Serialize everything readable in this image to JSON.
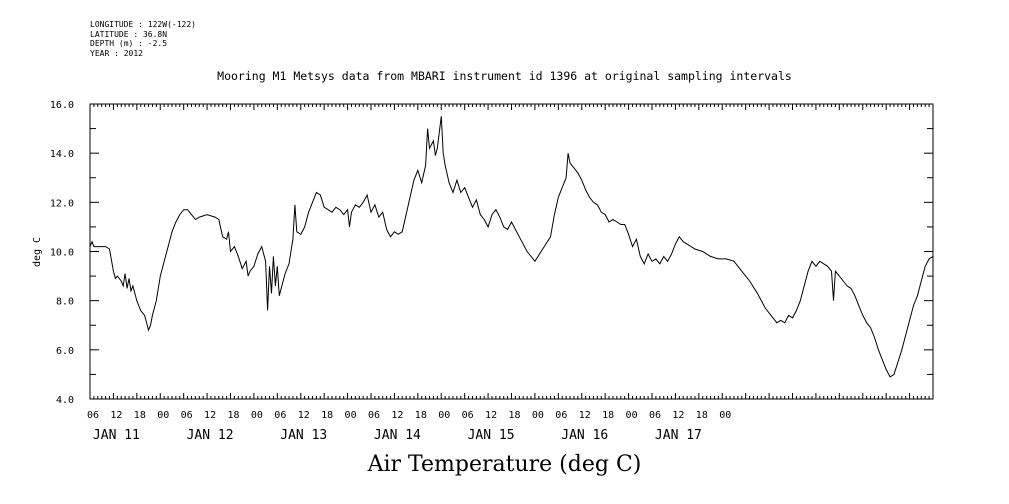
{
  "header": {
    "longitude": "LONGITUDE : 122W(-122)",
    "latitude": "LATITUDE : 36.8N",
    "depth": "DEPTH (m) : -2.5",
    "year": "YEAR : 2012"
  },
  "chart_data": {
    "type": "line",
    "title": "Air Temperature (deg C)",
    "subtitle": "Mooring M1 Metsys data from MBARI instrument id 1396 at original sampling intervals",
    "ylabel": "deg C",
    "ylim": [
      4.0,
      16.0
    ],
    "y_tick_labels": [
      "4.0",
      "6.0",
      "8.0",
      "10.0",
      "12.0",
      "14.0",
      "16.0"
    ],
    "x_range_hours": "2012-01-11 06:00 to 2012-01-18 00:00",
    "x_hour_labels": [
      "06",
      "12",
      "18",
      "00",
      "06",
      "12",
      "18",
      "00",
      "06",
      "12",
      "18",
      "00",
      "06",
      "12",
      "18",
      "00",
      "06",
      "12",
      "18",
      "00",
      "06",
      "12",
      "18",
      "00",
      "06",
      "12",
      "18",
      "00"
    ],
    "x_day_labels": [
      "JAN 11",
      "JAN 12",
      "JAN 13",
      "JAN 14",
      "JAN 15",
      "JAN 16",
      "JAN 17"
    ],
    "grid": false,
    "series": [
      {
        "values": [
          [
            0,
            10.2
          ],
          [
            0.5,
            10.4
          ],
          [
            1,
            10.2
          ],
          [
            3,
            10.2
          ],
          [
            4,
            10.2
          ],
          [
            5,
            10.1
          ],
          [
            6,
            9.2
          ],
          [
            6.5,
            8.9
          ],
          [
            7,
            9.0
          ],
          [
            8,
            8.8
          ],
          [
            8.5,
            8.6
          ],
          [
            9,
            9.1
          ],
          [
            9.5,
            8.5
          ],
          [
            10,
            8.9
          ],
          [
            10.5,
            8.4
          ],
          [
            11,
            8.6
          ],
          [
            12,
            8.0
          ],
          [
            13,
            7.6
          ],
          [
            14,
            7.4
          ],
          [
            14.5,
            7.1
          ],
          [
            15,
            6.8
          ],
          [
            15.5,
            7.0
          ],
          [
            16,
            7.4
          ],
          [
            17,
            8.0
          ],
          [
            18,
            9.0
          ],
          [
            19,
            9.6
          ],
          [
            20,
            10.2
          ],
          [
            21,
            10.8
          ],
          [
            22,
            11.2
          ],
          [
            23,
            11.5
          ],
          [
            24,
            11.7
          ],
          [
            25,
            11.7
          ],
          [
            26,
            11.5
          ],
          [
            27,
            11.3
          ],
          [
            28,
            11.4
          ],
          [
            30,
            11.5
          ],
          [
            32,
            11.4
          ],
          [
            33,
            11.3
          ],
          [
            34,
            10.6
          ],
          [
            35,
            10.5
          ],
          [
            35.5,
            10.8
          ],
          [
            36,
            10.0
          ],
          [
            37,
            10.2
          ],
          [
            38,
            9.8
          ],
          [
            39,
            9.3
          ],
          [
            40,
            9.6
          ],
          [
            40.5,
            9.0
          ],
          [
            41,
            9.2
          ],
          [
            42,
            9.4
          ],
          [
            43,
            9.9
          ],
          [
            44,
            10.2
          ],
          [
            45,
            9.6
          ],
          [
            45.5,
            7.6
          ],
          [
            46,
            9.4
          ],
          [
            46.5,
            8.3
          ],
          [
            47,
            9.8
          ],
          [
            47.5,
            8.6
          ],
          [
            48,
            9.4
          ],
          [
            48.5,
            8.2
          ],
          [
            49,
            8.5
          ],
          [
            50,
            9.1
          ],
          [
            51,
            9.5
          ],
          [
            52,
            10.5
          ],
          [
            52.5,
            11.9
          ],
          [
            53,
            10.8
          ],
          [
            54,
            10.7
          ],
          [
            55,
            11.0
          ],
          [
            56,
            11.6
          ],
          [
            57,
            12.0
          ],
          [
            58,
            12.4
          ],
          [
            59,
            12.3
          ],
          [
            60,
            11.8
          ],
          [
            61,
            11.7
          ],
          [
            62,
            11.6
          ],
          [
            63,
            11.8
          ],
          [
            64,
            11.7
          ],
          [
            65,
            11.5
          ],
          [
            66,
            11.7
          ],
          [
            66.5,
            11.0
          ],
          [
            67,
            11.6
          ],
          [
            68,
            11.9
          ],
          [
            69,
            11.8
          ],
          [
            70,
            12.0
          ],
          [
            71,
            12.3
          ],
          [
            72,
            11.6
          ],
          [
            73,
            11.9
          ],
          [
            74,
            11.4
          ],
          [
            75,
            11.6
          ],
          [
            76,
            10.9
          ],
          [
            77,
            10.6
          ],
          [
            78,
            10.8
          ],
          [
            79,
            10.7
          ],
          [
            80,
            10.8
          ],
          [
            81,
            11.5
          ],
          [
            82,
            12.2
          ],
          [
            83,
            12.9
          ],
          [
            84,
            13.3
          ],
          [
            85,
            12.8
          ],
          [
            86,
            13.5
          ],
          [
            86.5,
            15.0
          ],
          [
            87,
            14.2
          ],
          [
            88,
            14.5
          ],
          [
            88.5,
            13.9
          ],
          [
            89,
            14.2
          ],
          [
            90,
            15.5
          ],
          [
            90.5,
            14.0
          ],
          [
            91,
            13.5
          ],
          [
            92,
            12.8
          ],
          [
            93,
            12.4
          ],
          [
            94,
            12.9
          ],
          [
            95,
            12.4
          ],
          [
            96,
            12.6
          ],
          [
            97,
            12.2
          ],
          [
            98,
            11.8
          ],
          [
            99,
            12.1
          ],
          [
            100,
            11.5
          ],
          [
            101,
            11.3
          ],
          [
            102,
            11.0
          ],
          [
            103,
            11.5
          ],
          [
            104,
            11.7
          ],
          [
            105,
            11.4
          ],
          [
            106,
            11.0
          ],
          [
            107,
            10.9
          ],
          [
            108,
            11.2
          ],
          [
            110,
            10.6
          ],
          [
            112,
            10.0
          ],
          [
            114,
            9.6
          ],
          [
            116,
            10.1
          ],
          [
            118,
            10.6
          ],
          [
            119,
            11.5
          ],
          [
            120,
            12.2
          ],
          [
            121,
            12.6
          ],
          [
            122,
            13.0
          ],
          [
            122.5,
            14.0
          ],
          [
            123,
            13.6
          ],
          [
            124,
            13.4
          ],
          [
            125,
            13.2
          ],
          [
            126,
            12.9
          ],
          [
            127,
            12.5
          ],
          [
            128,
            12.2
          ],
          [
            129,
            12.0
          ],
          [
            130,
            11.9
          ],
          [
            131,
            11.6
          ],
          [
            132,
            11.5
          ],
          [
            133,
            11.2
          ],
          [
            134,
            11.3
          ],
          [
            135,
            11.2
          ],
          [
            136,
            11.1
          ],
          [
            137,
            11.1
          ],
          [
            138,
            10.7
          ],
          [
            139,
            10.2
          ],
          [
            140,
            10.5
          ],
          [
            141,
            9.8
          ],
          [
            142,
            9.5
          ],
          [
            143,
            9.9
          ],
          [
            144,
            9.6
          ],
          [
            145,
            9.7
          ],
          [
            146,
            9.5
          ],
          [
            147,
            9.8
          ],
          [
            148,
            9.6
          ],
          [
            149,
            9.9
          ],
          [
            150,
            10.3
          ],
          [
            151,
            10.6
          ],
          [
            152,
            10.4
          ],
          [
            153,
            10.3
          ],
          [
            155,
            10.1
          ],
          [
            157,
            10.0
          ],
          [
            159,
            9.8
          ],
          [
            161,
            9.7
          ],
          [
            163,
            9.7
          ],
          [
            165,
            9.6
          ],
          [
            167,
            9.2
          ],
          [
            169,
            8.8
          ],
          [
            171,
            8.3
          ],
          [
            173,
            7.7
          ],
          [
            175,
            7.3
          ],
          [
            176,
            7.1
          ],
          [
            177,
            7.2
          ],
          [
            178,
            7.1
          ],
          [
            179,
            7.4
          ],
          [
            180,
            7.3
          ],
          [
            181,
            7.6
          ],
          [
            182,
            8.0
          ],
          [
            183,
            8.6
          ],
          [
            184,
            9.2
          ],
          [
            185,
            9.6
          ],
          [
            186,
            9.4
          ],
          [
            187,
            9.6
          ],
          [
            188,
            9.5
          ],
          [
            189,
            9.4
          ],
          [
            190,
            9.2
          ],
          [
            190.5,
            8.0
          ],
          [
            191,
            9.2
          ],
          [
            192,
            9.0
          ],
          [
            193,
            8.8
          ],
          [
            194,
            8.6
          ],
          [
            195,
            8.5
          ],
          [
            196,
            8.2
          ],
          [
            197,
            7.8
          ],
          [
            198,
            7.4
          ],
          [
            199,
            7.1
          ],
          [
            200,
            6.9
          ],
          [
            201,
            6.5
          ],
          [
            202,
            6.0
          ],
          [
            203,
            5.6
          ],
          [
            204,
            5.2
          ],
          [
            205,
            4.9
          ],
          [
            206,
            5.0
          ],
          [
            207,
            5.5
          ],
          [
            208,
            6.0
          ],
          [
            209,
            6.6
          ],
          [
            210,
            7.2
          ],
          [
            211,
            7.8
          ],
          [
            212,
            8.2
          ],
          [
            213,
            8.8
          ],
          [
            214,
            9.4
          ],
          [
            215,
            9.7
          ],
          [
            216,
            9.8
          ]
        ]
      }
    ]
  }
}
